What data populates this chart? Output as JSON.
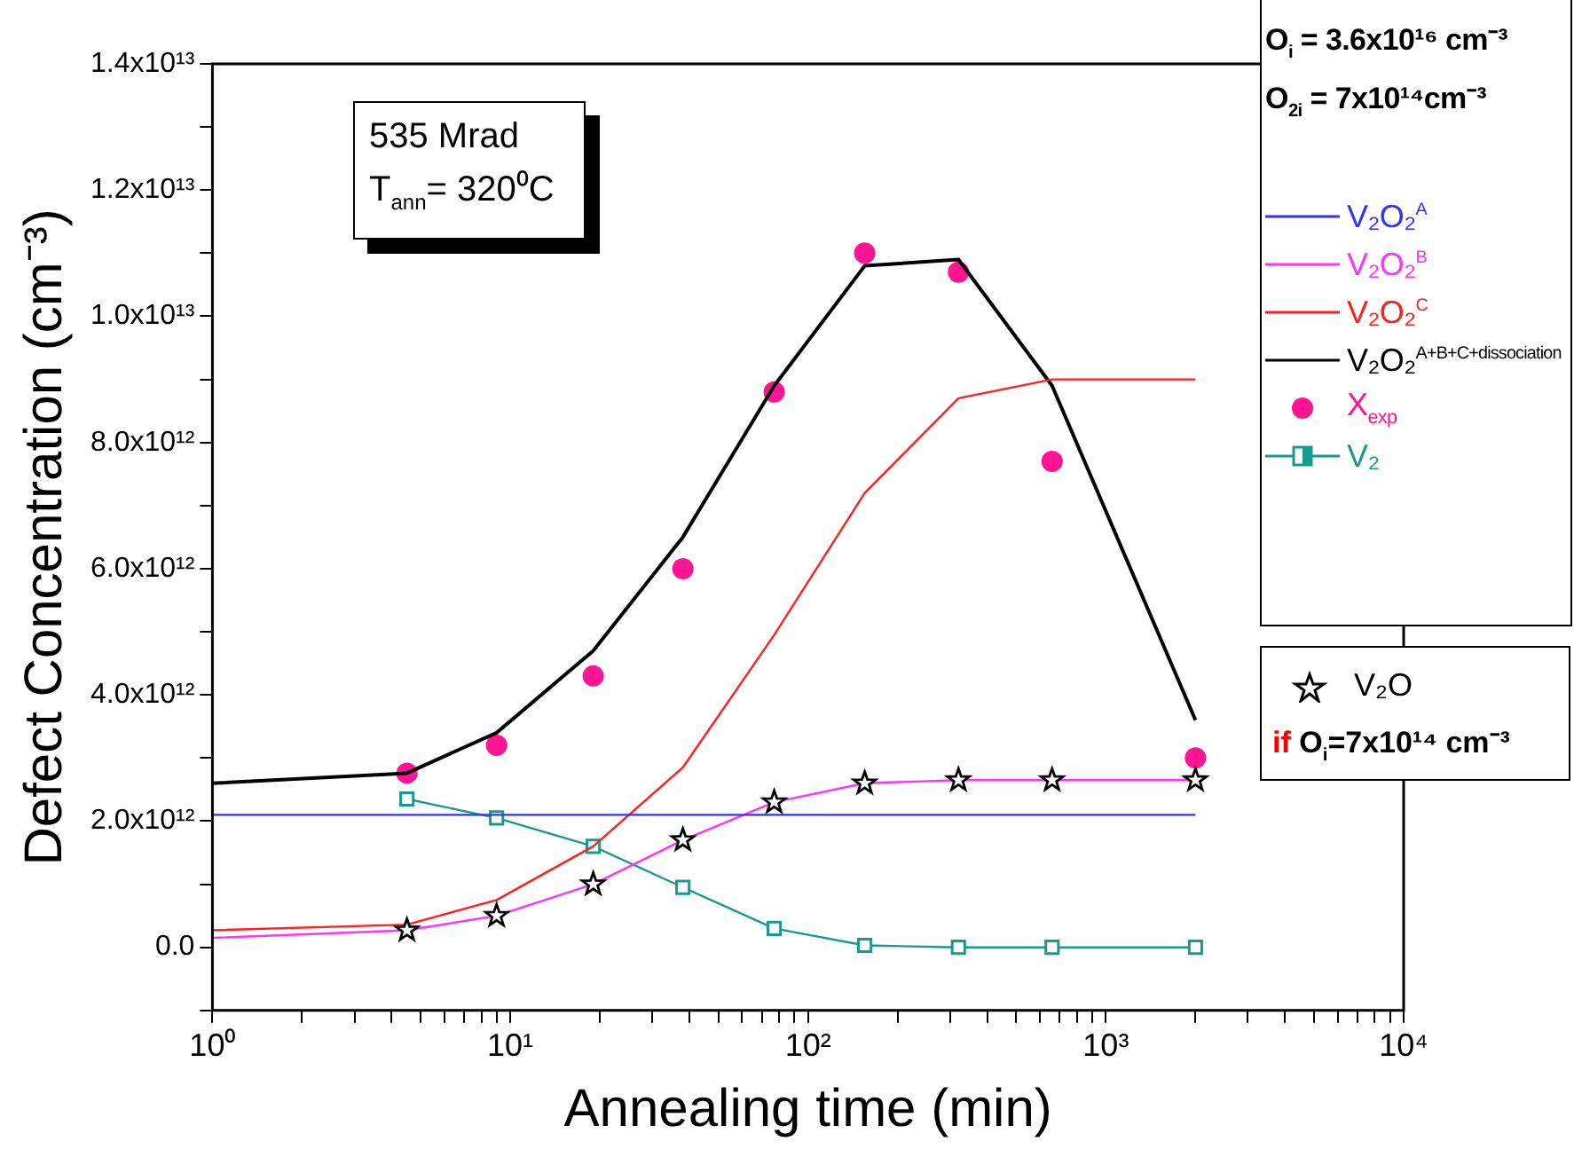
{
  "chart_data": {
    "type": "line",
    "xlabel": "Annealing time (min)",
    "ylabel": "Defect Concentration (cm⁻³)",
    "log": "x",
    "grid": false,
    "legend": "top right",
    "xlim": [
      1,
      10000
    ],
    "xticks": [
      {
        "value": 1,
        "label": "10⁰"
      },
      {
        "value": 2,
        "label": null
      },
      {
        "value": 3,
        "label": null
      },
      {
        "value": 4,
        "label": null
      },
      {
        "value": 5,
        "label": null
      },
      {
        "value": 6,
        "label": null
      },
      {
        "value": 7,
        "label": null
      },
      {
        "value": 8,
        "label": null
      },
      {
        "value": 9,
        "label": null
      },
      {
        "value": 10,
        "label": "10¹"
      },
      {
        "value": 20,
        "label": null
      },
      {
        "value": 30,
        "label": null
      },
      {
        "value": 40,
        "label": null
      },
      {
        "value": 50,
        "label": null
      },
      {
        "value": 60,
        "label": null
      },
      {
        "value": 70,
        "label": null
      },
      {
        "value": 80,
        "label": null
      },
      {
        "value": 90,
        "label": null
      },
      {
        "value": 100,
        "label": "10²"
      },
      {
        "value": 200,
        "label": null
      },
      {
        "value": 300,
        "label": null
      },
      {
        "value": 400,
        "label": null
      },
      {
        "value": 500,
        "label": null
      },
      {
        "value": 600,
        "label": null
      },
      {
        "value": 700,
        "label": null
      },
      {
        "value": 800,
        "label": null
      },
      {
        "value": 900,
        "label": null
      },
      {
        "value": 1000,
        "label": "10³"
      },
      {
        "value": 2000,
        "label": null
      },
      {
        "value": 3000,
        "label": null
      },
      {
        "value": 4000,
        "label": null
      },
      {
        "value": 5000,
        "label": null
      },
      {
        "value": 6000,
        "label": null
      },
      {
        "value": 7000,
        "label": null
      },
      {
        "value": 8000,
        "label": null
      },
      {
        "value": 9000,
        "label": null
      },
      {
        "value": 10000,
        "label": "10⁴"
      }
    ],
    "ylim": [
      -1000000000000.0,
      14000000000000.0
    ],
    "yticks": [
      {
        "value": -1000000000000.0,
        "label": null
      },
      {
        "value": 0,
        "label": "0.0"
      },
      {
        "value": 1000000000000.0,
        "label": null
      },
      {
        "value": 2000000000000.0,
        "label": "2.0x10¹²"
      },
      {
        "value": 3000000000000.0,
        "label": null
      },
      {
        "value": 4000000000000.0,
        "label": "4.0x10¹²"
      },
      {
        "value": 5000000000000.0,
        "label": null
      },
      {
        "value": 6000000000000.0,
        "label": "6.0x10¹²"
      },
      {
        "value": 7000000000000.0,
        "label": null
      },
      {
        "value": 8000000000000.0,
        "label": "8.0x10¹²"
      },
      {
        "value": 9000000000000.0,
        "label": null
      },
      {
        "value": 10000000000000.0,
        "label": "1.0x10¹³"
      },
      {
        "value": 11000000000000.0,
        "label": null
      },
      {
        "value": 12000000000000.0,
        "label": "1.2x10¹³"
      },
      {
        "value": 13000000000000.0,
        "label": null
      },
      {
        "value": 14000000000000.0,
        "label": "1.4x10¹³"
      }
    ],
    "annotations": [
      "O$_{i}$ = 3.6x10¹⁶ cm⁻³",
      "O$_{2i}$ = 7x10¹⁴cm⁻³",
      "535 Mrad",
      "T$_{ann}$= 320⁰C",
      "if O$_{i}$=7x10¹⁴ cm⁻³"
    ],
    "series": [
      {
        "name": "V₂O₂$^{A}$",
        "type": "line",
        "marker": "none",
        "color": "#3333ff",
        "x": [
          1,
          2000
        ],
        "values": [
          2100000000000.0,
          2100000000000.0
        ]
      },
      {
        "name": "V₂O₂$^{B}$",
        "type": "line",
        "marker": "none",
        "color": "#ff33ff",
        "x": [
          1,
          4.5,
          9,
          19,
          38,
          77,
          155,
          320,
          660,
          2000
        ],
        "values": [
          150000000000.0,
          270000000000.0,
          500000000000.0,
          1000000000000.0,
          1700000000000.0,
          2300000000000.0,
          2600000000000.0,
          2650000000000.0,
          2650000000000.0,
          2650000000000.0
        ]
      },
      {
        "name": "V₂O₂$^{C}$",
        "type": "line",
        "marker": "none",
        "color": "#ff2020",
        "x": [
          1,
          4.5,
          9,
          19,
          38,
          77,
          155,
          320,
          660,
          2000
        ],
        "values": [
          270000000000.0,
          360000000000.0,
          750000000000.0,
          1600000000000.0,
          2850000000000.0,
          4950000000000.0,
          7200000000000.0,
          8700000000000.0,
          9000000000000.0,
          9000000000000.0
        ]
      },
      {
        "name": "V₂O₂$^{A+B+C+dissociation}$",
        "type": "line",
        "marker": "none",
        "color": "#000000",
        "x": [
          1,
          4.5,
          9,
          19,
          38,
          77,
          155,
          320,
          660,
          2000
        ],
        "values": [
          2600000000000.0,
          2760000000000.0,
          3400000000000.0,
          4700000000000.0,
          6500000000000.0,
          8900000000000.0,
          10800000000000.0,
          10900000000000.0,
          8900000000000.0,
          3600000000000.0
        ]
      },
      {
        "name": "X$_{exp}$",
        "type": "scatter",
        "marker": "circle",
        "color": "#ff1493",
        "x": [
          4.5,
          9,
          19,
          38,
          77,
          155,
          320,
          660,
          2000
        ],
        "values": [
          2760000000000.0,
          3200000000000.0,
          4300000000000.0,
          6000000000000.0,
          8800000000000.0,
          11000000000000.0,
          10700000000000.0,
          7700000000000.0,
          3000000000000.0
        ]
      },
      {
        "name": "V₂",
        "type": "line",
        "marker": "square",
        "color": "#1a9a8f",
        "x": [
          4.5,
          9,
          19,
          38,
          77,
          155,
          320,
          660,
          2000
        ],
        "values": [
          2350000000000.0,
          2050000000000.0,
          1600000000000.0,
          950000000000.0,
          300000000000.0,
          30000000000.0,
          0,
          0,
          0
        ]
      },
      {
        "name": "V₂O",
        "type": "scatter",
        "marker": "star",
        "color": "#000000",
        "x": [
          4.5,
          9,
          19,
          38,
          77,
          155,
          320,
          660,
          2000
        ],
        "values": [
          270000000000.0,
          500000000000.0,
          1000000000000.0,
          1700000000000.0,
          2300000000000.0,
          2600000000000.0,
          2650000000000.0,
          2650000000000.0,
          2650000000000.0
        ]
      }
    ]
  }
}
